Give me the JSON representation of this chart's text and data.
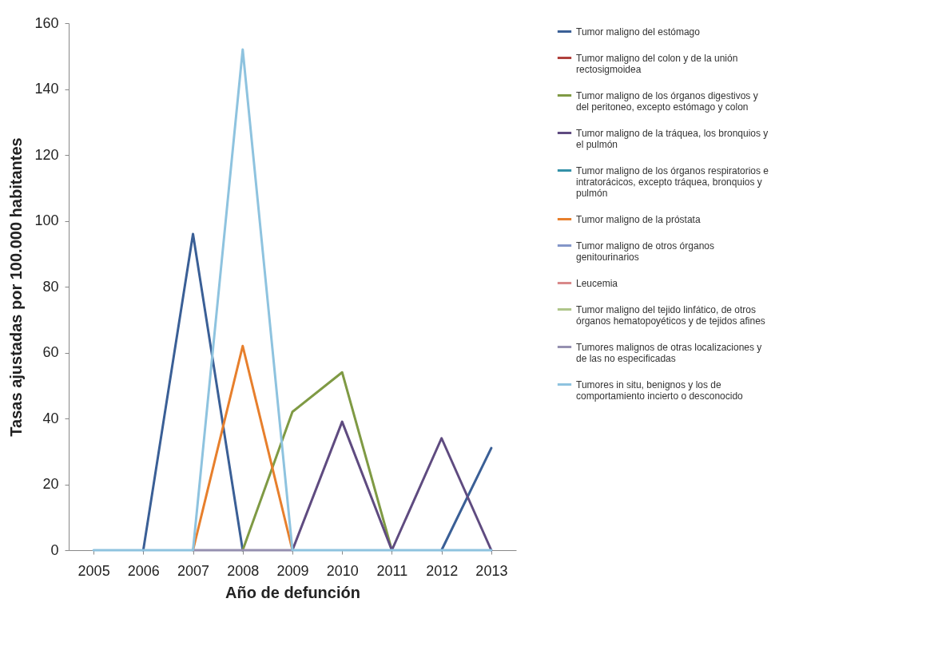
{
  "chart_data": {
    "type": "line",
    "xlabel": "Año de defunción",
    "ylabel": "Tasas ajustadas por 100.000 habitantes",
    "categories": [
      "2005",
      "2006",
      "2007",
      "2008",
      "2009",
      "2010",
      "2011",
      "2012",
      "2013"
    ],
    "ylim": [
      0,
      160
    ],
    "yticks": [
      0,
      20,
      40,
      60,
      80,
      100,
      120,
      140,
      160
    ],
    "grid": false,
    "legend": "right",
    "marker": "none",
    "line_style": "solid",
    "series": [
      {
        "name": "Tumor maligno del estómago",
        "color": "#3a5f96",
        "values": [
          null,
          0,
          96,
          0,
          null,
          null,
          null,
          0,
          31
        ]
      },
      {
        "name": "Tumor maligno del colon y de la unión rectosigmoidea",
        "color": "#b0403c",
        "values": [
          null,
          null,
          null,
          null,
          null,
          null,
          null,
          null,
          null
        ]
      },
      {
        "name": "Tumor maligno de los órganos digestivos y del peritoneo, excepto estómago y colon",
        "color": "#7f9a44",
        "values": [
          null,
          null,
          null,
          0,
          42,
          54,
          0,
          null,
          null
        ]
      },
      {
        "name": "Tumor maligno de la tráquea, los bronquios y el pulmón",
        "color": "#5f4b80",
        "values": [
          null,
          null,
          null,
          null,
          0,
          39,
          0,
          34,
          0
        ]
      },
      {
        "name": "Tumor maligno de los órganos respiratorios e intratorácicos, excepto tráquea, bronquios y pulmón",
        "color": "#3491a8",
        "values": [
          null,
          null,
          null,
          null,
          null,
          null,
          null,
          null,
          null
        ]
      },
      {
        "name": "Tumor maligno de la próstata",
        "color": "#e77f2c",
        "values": [
          null,
          null,
          0,
          62,
          0,
          null,
          null,
          null,
          null
        ]
      },
      {
        "name": "Tumor maligno de otros órganos genitourinarios",
        "color": "#8496c8",
        "values": [
          null,
          null,
          null,
          null,
          null,
          null,
          null,
          null,
          null
        ]
      },
      {
        "name": "Leucemia",
        "color": "#d9898a",
        "values": [
          null,
          null,
          null,
          null,
          null,
          null,
          null,
          null,
          null
        ]
      },
      {
        "name": "Tumor maligno del tejido linfático, de otros órganos hematopoyéticos y de tejidos afines",
        "color": "#afc58a",
        "values": [
          null,
          null,
          null,
          null,
          null,
          null,
          null,
          null,
          null
        ]
      },
      {
        "name": "Tumores malignos de otras localizaciones y de las no especificadas",
        "color": "#9590b0",
        "values": [
          null,
          null,
          0,
          0,
          0,
          null,
          null,
          null,
          null
        ]
      },
      {
        "name": "Tumores in situ, benignos y los de comportamiento incierto o desconocido",
        "color": "#8ec3df",
        "values": [
          0,
          0,
          0,
          152,
          0,
          0,
          0,
          0,
          0
        ]
      }
    ]
  }
}
